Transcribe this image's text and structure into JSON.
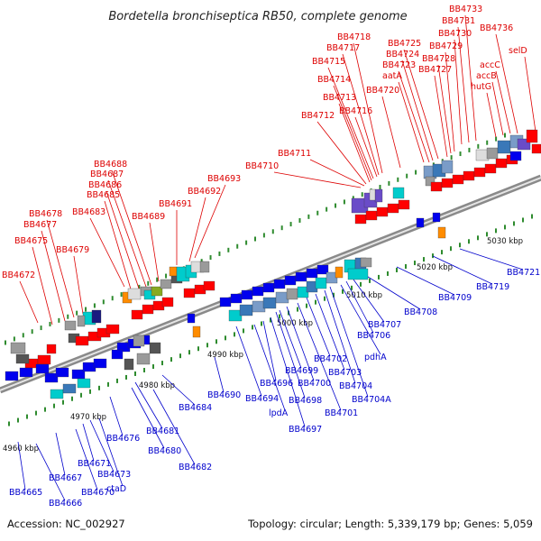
{
  "title": "Bordetella bronchiseptica RB50, complete genome",
  "footer": {
    "accession": "Accession: NC_002927",
    "summary": "Topology: circular; Length: 5,339,179 bp; Genes: 5,059"
  },
  "colors": {
    "forward_label": "#dd0000",
    "reverse_label": "#0000cc",
    "axis": "#8a8a8a",
    "tick": "#2e8b2e"
  },
  "kbp_ticks": [
    "4960 kbp",
    "4970 kbp",
    "4980 kbp",
    "4990 kbp",
    "5000 kbp",
    "5010 kbp",
    "5020 kbp",
    "5030 kbp"
  ],
  "forward_labels": [
    "BB4672",
    "BB4675",
    "BB4677",
    "BB4678",
    "BB4679",
    "BB4683",
    "BB4685",
    "BB4686",
    "BB4687",
    "BB4688",
    "BB4689",
    "BB4691",
    "BB4692",
    "BB4693",
    "BB4710",
    "BB4711",
    "BB4712",
    "BB4713",
    "BB4714",
    "BB4715",
    "BB4716",
    "BB4717",
    "BB4718",
    "BB4720",
    "aatA",
    "BB4723",
    "BB4724",
    "BB4725",
    "BB4727",
    "BB4728",
    "hutG",
    "BB4729",
    "BB4730",
    "accB",
    "BB4731",
    "accC",
    "BB4733",
    "BB4736",
    "selD"
  ],
  "reverse_labels": [
    "BB4665",
    "BB4666",
    "BB4667",
    "BB4670",
    "BB4671",
    "BB4673",
    "ctaD",
    "BB4676",
    "BB4680",
    "BB4681",
    "BB4682",
    "BB4684",
    "BB4690",
    "BB4694",
    "lpdA",
    "BB4696",
    "BB4697",
    "BB4698",
    "BB4699",
    "BB4700",
    "BB4701",
    "BB4702",
    "BB4703",
    "BB4704",
    "BB4704A",
    "pdhA",
    "BB4706",
    "BB4707",
    "BB4708",
    "BB4709",
    "BB4719",
    "BB4721"
  ]
}
